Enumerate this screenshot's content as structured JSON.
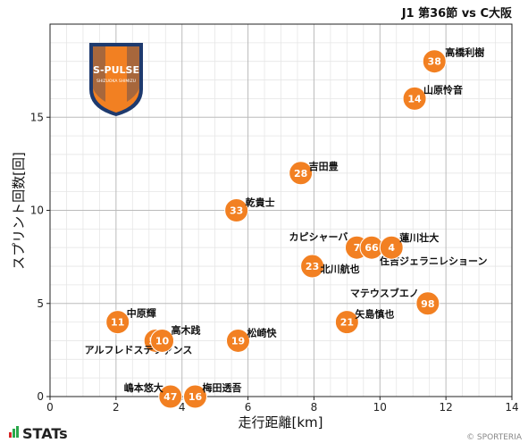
{
  "chart_data": {
    "type": "scatter",
    "title": "J1 第36節 vs C大阪",
    "xlabel": "走行距離[km]",
    "ylabel": "スプリント回数[回]",
    "xlim": [
      0,
      14
    ],
    "ylim": [
      0,
      20
    ],
    "xticks": [
      0,
      2,
      4,
      6,
      8,
      10,
      12,
      14
    ],
    "yticks": [
      0,
      5,
      10,
      15
    ],
    "grid": true,
    "marker_color": "#f28022",
    "points": [
      {
        "number": "38",
        "name": "高橋利樹",
        "x": 11.65,
        "y": 18
      },
      {
        "number": "14",
        "name": "山原怜音",
        "x": 11.05,
        "y": 16
      },
      {
        "number": "28",
        "name": "吉田豊",
        "x": 7.6,
        "y": 12
      },
      {
        "number": "33",
        "name": "乾貴士",
        "x": 5.65,
        "y": 10
      },
      {
        "number": "7",
        "name": "カピシャーバ",
        "x": 9.3,
        "y": 8
      },
      {
        "number": "66",
        "name": "住吉ジェラニレショーン",
        "x": 9.75,
        "y": 8
      },
      {
        "number": "4",
        "name": "蓮川壮大",
        "x": 10.35,
        "y": 8
      },
      {
        "number": "23",
        "name": "北川航也",
        "x": 7.95,
        "y": 7
      },
      {
        "number": "98",
        "name": "マテウスブエノ",
        "x": 11.45,
        "y": 5
      },
      {
        "number": "21",
        "name": "矢島慎也",
        "x": 9.0,
        "y": 4
      },
      {
        "number": "11",
        "name": "中原輝",
        "x": 2.05,
        "y": 4
      },
      {
        "number": "50",
        "name": "アルフレドステファンス",
        "x": 3.2,
        "y": 3
      },
      {
        "number": "10",
        "name": "高木践",
        "x": 3.4,
        "y": 3
      },
      {
        "number": "19",
        "name": "松崎快",
        "x": 5.7,
        "y": 3
      },
      {
        "number": "47",
        "name": "嶋本悠大",
        "x": 3.65,
        "y": 0
      },
      {
        "number": "16",
        "name": "梅田透吾",
        "x": 4.4,
        "y": 0
      }
    ]
  },
  "logo": {
    "text": "S-PULSE",
    "subtext": "SHIZUOKA SHIMIZU",
    "color": "#f28022",
    "dark": "#1e3a6e"
  },
  "footer": {
    "brand": "STATs",
    "credit": "© SPORTERIA"
  }
}
